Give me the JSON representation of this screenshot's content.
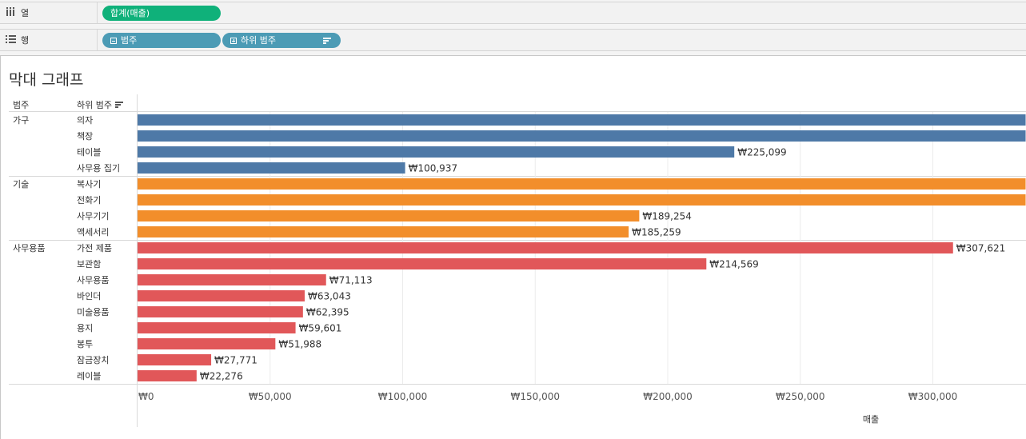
{
  "shelves": {
    "columns": {
      "icon": "columns-icon",
      "label": "열",
      "pill": "합계(매출)"
    },
    "rows": {
      "icon": "rows-icon",
      "label": "행",
      "pills": [
        "범주",
        "하위 범주"
      ]
    }
  },
  "sheet": {
    "title": "막대 그래프",
    "headers": {
      "category": "범주",
      "subcategory": "하위 범주"
    }
  },
  "colors": {
    "가구": "#4e79a7",
    "기술": "#f28e2b",
    "사무용품": "#e15759",
    "measure_pill": "#0fb17a",
    "dim_pill": "#4c9bb5"
  },
  "chart_data": {
    "type": "bar",
    "orientation": "horizontal",
    "xlabel": "매출",
    "xlim": [
      0,
      335000
    ],
    "xticks": [
      0,
      50000,
      100000,
      150000,
      200000,
      250000,
      300000
    ],
    "xtick_labels": [
      "₩0",
      "₩50,000",
      "₩100,000",
      "₩150,000",
      "₩200,000",
      "₩250,000",
      "₩300,000"
    ],
    "groups": [
      {
        "category": "가구",
        "color": "#4e79a7",
        "rows": [
          {
            "sub": "의자",
            "value": 335000,
            "label": ""
          },
          {
            "sub": "책장",
            "value": 335000,
            "label": ""
          },
          {
            "sub": "테이블",
            "value": 225099,
            "label": "₩225,099"
          },
          {
            "sub": "사무용 집기",
            "value": 100937,
            "label": "₩100,937"
          }
        ]
      },
      {
        "category": "기술",
        "color": "#f28e2b",
        "rows": [
          {
            "sub": "복사기",
            "value": 335000,
            "label": ""
          },
          {
            "sub": "전화기",
            "value": 335000,
            "label": ""
          },
          {
            "sub": "사무기기",
            "value": 189254,
            "label": "₩189,254"
          },
          {
            "sub": "액세서리",
            "value": 185259,
            "label": "₩185,259"
          }
        ]
      },
      {
        "category": "사무용품",
        "color": "#e15759",
        "rows": [
          {
            "sub": "가전 제품",
            "value": 307621,
            "label": "₩307,621"
          },
          {
            "sub": "보관함",
            "value": 214569,
            "label": "₩214,569"
          },
          {
            "sub": "사무용품",
            "value": 71113,
            "label": "₩71,113"
          },
          {
            "sub": "바인더",
            "value": 63043,
            "label": "₩63,043"
          },
          {
            "sub": "미술용품",
            "value": 62395,
            "label": "₩62,395"
          },
          {
            "sub": "용지",
            "value": 59601,
            "label": "₩59,601"
          },
          {
            "sub": "봉투",
            "value": 51988,
            "label": "₩51,988"
          },
          {
            "sub": "잠금장치",
            "value": 27771,
            "label": "₩27,771"
          },
          {
            "sub": "레이블",
            "value": 22276,
            "label": "₩22,276"
          }
        ]
      }
    ]
  }
}
